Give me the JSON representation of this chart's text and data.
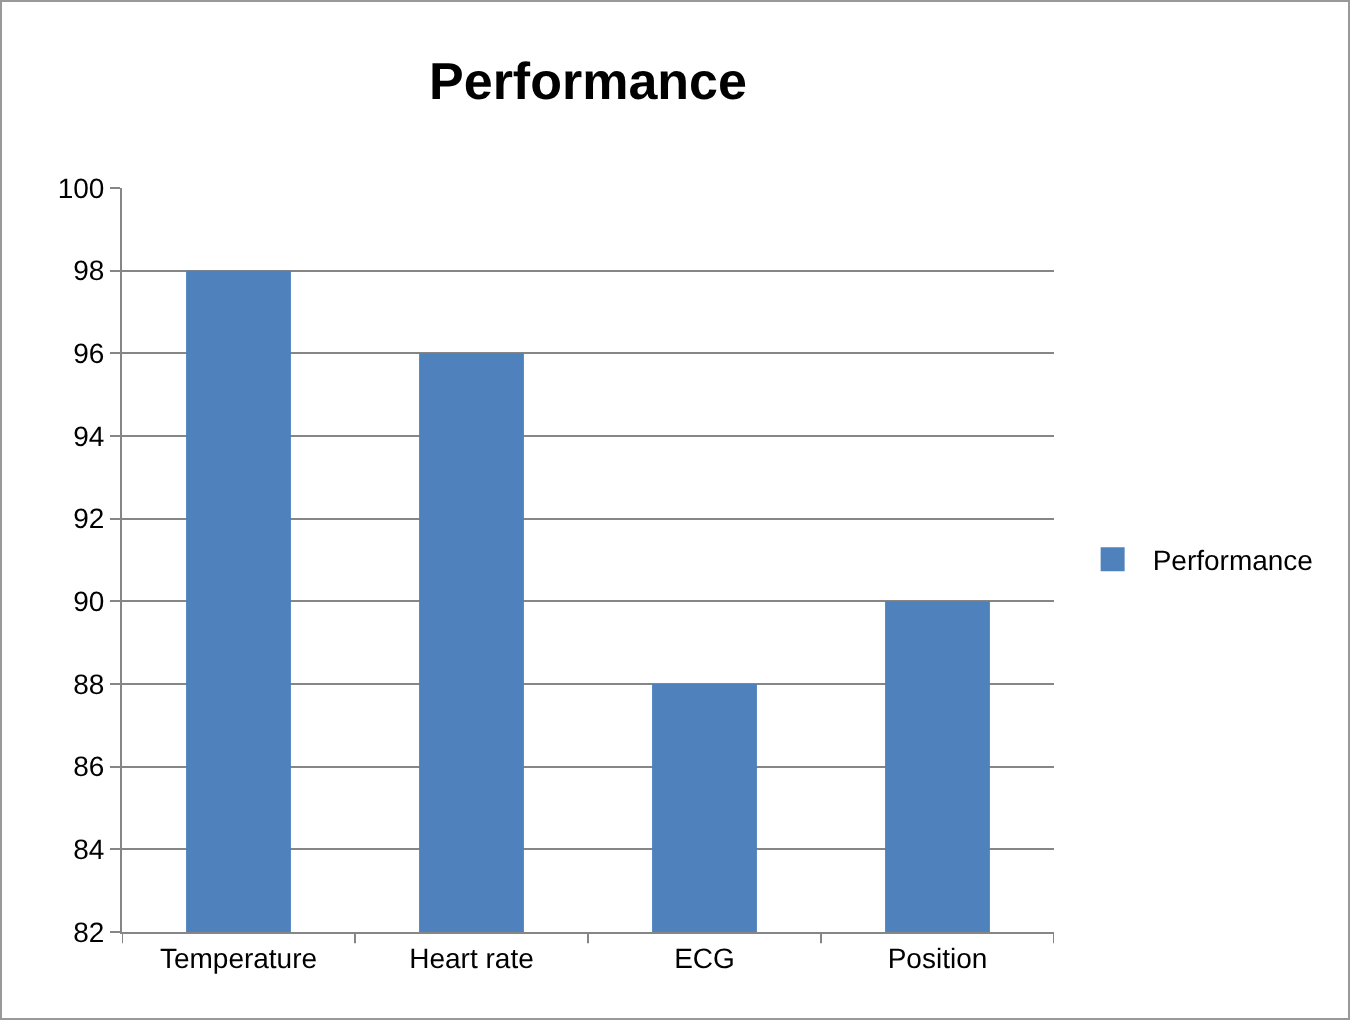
{
  "chart_data": {
    "type": "bar",
    "title": "Performance",
    "categories": [
      "Temperature",
      "Heart rate",
      "ECG",
      "Position"
    ],
    "series": [
      {
        "name": "Performance",
        "color": "#4f81bd",
        "values": [
          98,
          96,
          88,
          90
        ]
      }
    ],
    "ylim": [
      82,
      100
    ],
    "yticks": [
      82,
      84,
      86,
      88,
      90,
      92,
      94,
      96,
      98,
      100
    ],
    "grid": "y",
    "legend": "right"
  }
}
